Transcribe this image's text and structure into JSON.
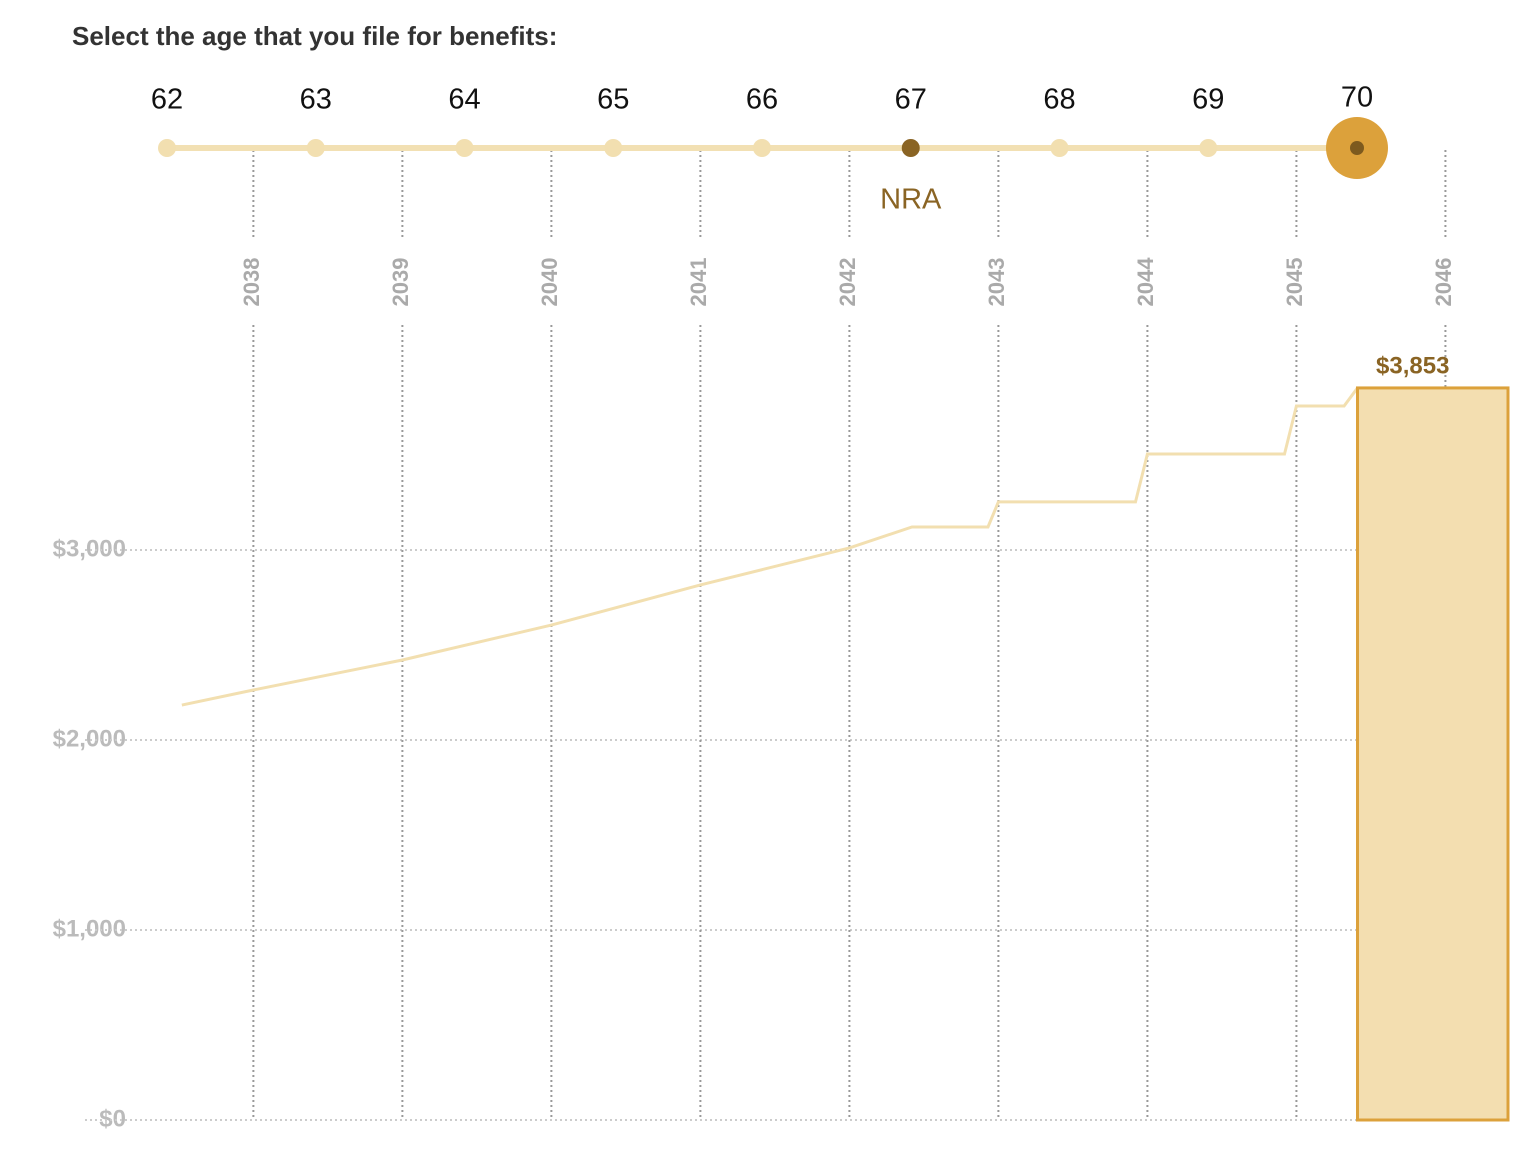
{
  "header": {
    "title": "Select the age that you file for benefits:"
  },
  "slider": {
    "ages": [
      62,
      63,
      64,
      65,
      66,
      67,
      68,
      69,
      70
    ],
    "selected": 70,
    "nra": 67,
    "nra_label": "NRA"
  },
  "chart_data": {
    "type": "line",
    "x": [
      2037.52,
      2038,
      2039,
      2040,
      2041,
      2042,
      2042.42,
      2042.93,
      2043,
      2043.92,
      2044,
      2044.92,
      2045,
      2045.32,
      2045.41
    ],
    "series": [
      {
        "color": "#f2dfb0",
        "values": [
          2184,
          2263,
          2421,
          2605,
          2816,
          3011,
          3121,
          3121,
          3253,
          3253,
          3505,
          3505,
          3758,
          3758,
          3853
        ]
      }
    ],
    "bar": {
      "x": [
        2045.41,
        2046.42
      ],
      "value": 3853,
      "value_label": "$3,853",
      "color": "#f3deb0",
      "edge": "#dca13b"
    },
    "xlim": [
      2036.87,
      2046.42
    ],
    "ylim": [
      0,
      4000
    ],
    "xticks": [
      2038,
      2039,
      2040,
      2041,
      2042,
      2043,
      2044,
      2045,
      2046
    ],
    "yticks": [
      {
        "value": 0,
        "label": "$0"
      },
      {
        "value": 1000,
        "label": "$1,000"
      },
      {
        "value": 2000,
        "label": "$2,000"
      },
      {
        "value": 3000,
        "label": "$3,000"
      }
    ],
    "grid": true
  }
}
